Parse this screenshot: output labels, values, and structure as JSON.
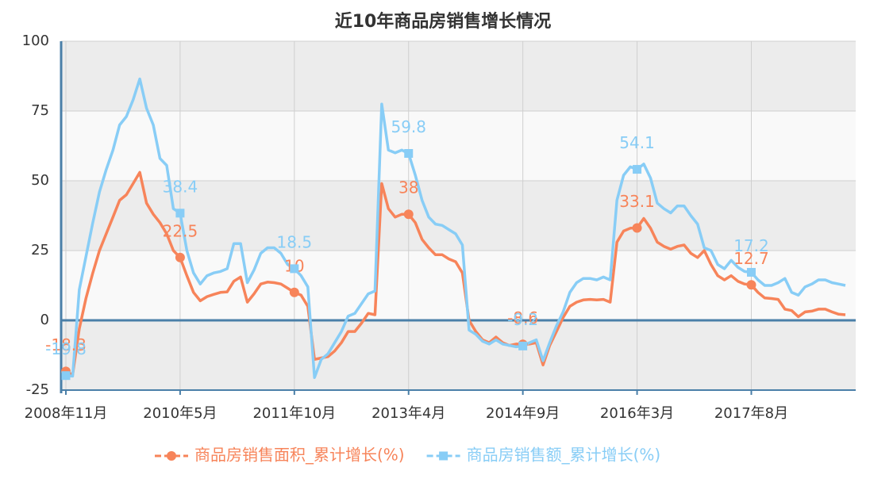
{
  "chart_data": {
    "type": "line",
    "title": "近10年商品房销售增长情况",
    "categories": [
      "2008年11月",
      null,
      null,
      null,
      null,
      null,
      null,
      null,
      null,
      null,
      null,
      null,
      null,
      null,
      null,
      null,
      null,
      "2010年5月",
      null,
      null,
      null,
      null,
      null,
      null,
      null,
      null,
      null,
      null,
      null,
      null,
      null,
      null,
      null,
      null,
      "2011年10月",
      null,
      null,
      null,
      null,
      null,
      null,
      null,
      null,
      null,
      null,
      null,
      null,
      null,
      null,
      null,
      null,
      "2013年4月",
      null,
      null,
      null,
      null,
      null,
      null,
      null,
      null,
      null,
      null,
      null,
      null,
      null,
      null,
      null,
      null,
      "2014年9月",
      null,
      null,
      null,
      null,
      null,
      null,
      null,
      null,
      null,
      null,
      null,
      null,
      null,
      null,
      null,
      null,
      "2016年3月",
      null,
      null,
      null,
      null,
      null,
      null,
      null,
      null,
      null,
      null,
      null,
      null,
      null,
      null,
      null,
      null,
      "2017年8月",
      null,
      null,
      null,
      null,
      null,
      null,
      null,
      null,
      null,
      null,
      null,
      null,
      null,
      null
    ],
    "series": [
      {
        "name": "商品房销售面积_累计增长(%)",
        "color": "#f7845a",
        "marker": "circle",
        "values": [
          -18.3,
          -19.5,
          -3,
          8,
          17,
          25,
          31,
          37,
          43,
          45,
          49,
          53,
          42,
          38,
          35,
          31,
          25,
          22.5,
          16,
          10,
          7,
          8.5,
          9.3,
          10,
          10.2,
          14,
          15.5,
          6.5,
          9.5,
          13,
          13.7,
          13.5,
          13,
          11.5,
          10,
          9,
          5,
          -14,
          -13.5,
          -13,
          -11,
          -8,
          -4,
          -4,
          -1,
          2.5,
          2,
          49,
          40,
          37,
          38,
          38,
          35,
          29,
          26,
          23.5,
          23.5,
          22,
          21,
          17,
          0,
          -4,
          -7,
          -8,
          -6,
          -8,
          -9,
          -8.5,
          -8.6,
          -8.5,
          -8,
          -16,
          -9,
          -4,
          1,
          5,
          6.5,
          7.3,
          7.5,
          7.3,
          7.5,
          6.5,
          28,
          32,
          33,
          33.1,
          36.5,
          33,
          28,
          26.5,
          25.5,
          26.5,
          27,
          24,
          22.5,
          25,
          20,
          16,
          14.5,
          16,
          14,
          13,
          12.7,
          10,
          8,
          7.8,
          7.5,
          4,
          3.5,
          1.3,
          3,
          3.3,
          4,
          4,
          3,
          2.2,
          2
        ]
      },
      {
        "name": "商品房销售额_累计增长(%)",
        "color": "#88cdf6",
        "marker": "square",
        "values": [
          -19.8,
          -20,
          11,
          23,
          35,
          46,
          54,
          61,
          70,
          73,
          79,
          86.5,
          76,
          70,
          58,
          55.5,
          40,
          38.4,
          25,
          17,
          13,
          16,
          17,
          17.5,
          18.5,
          27.5,
          27.5,
          13.5,
          18,
          24,
          26,
          26,
          24,
          20,
          18.5,
          16,
          12,
          -20.5,
          -14,
          -12,
          -8,
          -4,
          1.5,
          2.5,
          6,
          9.5,
          10.5,
          77.5,
          61,
          60,
          61,
          59.8,
          52,
          43,
          37,
          34.5,
          34,
          32.5,
          31,
          27,
          -3.5,
          -5,
          -7.5,
          -8.5,
          -7,
          -8.5,
          -9,
          -9.5,
          -9.2,
          -8,
          -7,
          -14.5,
          -8,
          -2,
          3,
          10,
          13.5,
          15,
          15,
          14.5,
          15.5,
          14.5,
          43,
          52,
          55,
          54.1,
          56,
          51,
          42,
          40,
          38.5,
          41,
          41,
          37.5,
          34.5,
          26,
          25,
          20,
          18.5,
          21.5,
          19,
          17.5,
          17.2,
          14.5,
          12.5,
          12.5,
          13.5,
          15,
          10,
          9,
          12,
          13,
          14.5,
          14.5,
          13.5,
          13,
          12.5
        ]
      }
    ],
    "marker_every": 17,
    "ylim": [
      -25,
      100
    ],
    "yticks": [
      -25,
      0,
      25,
      50,
      75,
      100
    ],
    "grid": true,
    "legend": "bottom"
  }
}
